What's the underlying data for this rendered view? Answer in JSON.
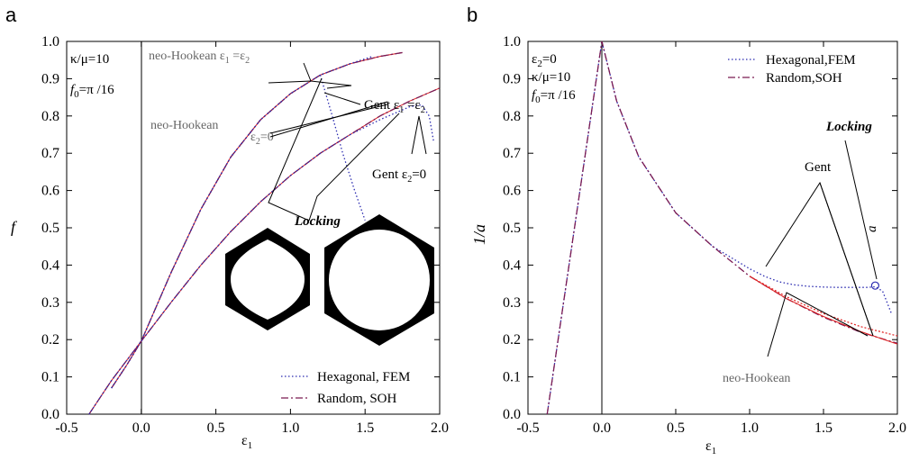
{
  "panels": {
    "a": {
      "letter": "a",
      "ylabel": "f",
      "xlabel": "ε",
      "xlabel_sub": "1",
      "x_ticks": [
        "-0.5",
        "0.0",
        "0.5",
        "1.0",
        "1.5",
        "2.0"
      ],
      "y_ticks": [
        "0.0",
        "0.1",
        "0.2",
        "0.3",
        "0.4",
        "0.5",
        "0.6",
        "0.7",
        "0.8",
        "0.9",
        "1.0"
      ],
      "params": [
        "κ/μ=10",
        "f",
        "0",
        "=π /16"
      ],
      "annotations": {
        "nh_equal": "neo-Hookean ε",
        "nh_equal_b": "1",
        "nh_equal_c": " =ε",
        "nh_equal_d": "2",
        "gent_equal": "Gent ε",
        "gent_equal_b": "1",
        "gent_equal_c": " =ε",
        "gent_equal_d": "2",
        "nh": "neo-Hookean",
        "eps2_zero": "ε",
        "eps2_zero_b": "2",
        "eps2_zero_c": "=0",
        "gent_eps2": "Gent ε",
        "gent_eps2_b": "2",
        "gent_eps2_c": "=0",
        "locking": "Locking"
      },
      "legend": [
        "Hexagonal, FEM",
        "Random, SOH"
      ]
    },
    "b": {
      "letter": "b",
      "ylabel": "1/a",
      "xlabel": "ε",
      "xlabel_sub": "1",
      "x_ticks": [
        "-0.5",
        "0.0",
        "0.5",
        "1.0",
        "1.5",
        "2.0"
      ],
      "y_ticks": [
        "0.0",
        "0.1",
        "0.2",
        "0.3",
        "0.4",
        "0.5",
        "0.6",
        "0.7",
        "0.8",
        "0.9",
        "1.0"
      ],
      "params": [
        "ε",
        "2",
        "=0",
        "κ/μ=10",
        "f",
        "0",
        "=π /16"
      ],
      "annotations": {
        "locking": "Locking",
        "gent": "Gent",
        "a": "a",
        "nh": "neo-Hookean"
      },
      "legend": [
        "Hexagonal,FEM",
        "Random,SOH"
      ]
    }
  },
  "colors": {
    "fem": "#2b2bb0",
    "soh": "#7a1a52",
    "red": "#e02020",
    "axis": "#000000"
  },
  "chart_data": [
    {
      "type": "line",
      "title": "",
      "xlabel": "ε1",
      "ylabel": "f",
      "xlim": [
        -0.5,
        2.0
      ],
      "ylim": [
        0.0,
        1.0
      ],
      "series": [
        {
          "name": "Hexagonal, FEM",
          "curve": "equibiaxial neo-Hookean",
          "x": [
            -0.2,
            -0.1,
            0,
            0.2,
            0.4,
            0.6,
            0.8,
            1.0,
            1.2,
            1.4,
            1.6,
            1.75
          ],
          "y": [
            0.07,
            0.13,
            0.196,
            0.38,
            0.55,
            0.69,
            0.79,
            0.86,
            0.91,
            0.94,
            0.96,
            0.97
          ]
        },
        {
          "name": "Random, SOH",
          "curve": "equibiaxial neo-Hookean",
          "x": [
            -0.2,
            -0.1,
            0,
            0.2,
            0.4,
            0.6,
            0.8,
            1.0,
            1.2,
            1.4,
            1.6,
            1.75
          ],
          "y": [
            0.07,
            0.13,
            0.196,
            0.38,
            0.55,
            0.69,
            0.79,
            0.86,
            0.91,
            0.94,
            0.96,
            0.97
          ]
        },
        {
          "name": "Hexagonal, FEM",
          "curve": "equibiaxial Gent",
          "x": [
            -0.2,
            -0.1,
            0,
            0.2,
            0.4,
            0.6,
            0.8,
            1.0,
            1.2,
            1.4,
            1.55
          ],
          "y": [
            0.07,
            0.13,
            0.196,
            0.38,
            0.55,
            0.69,
            0.79,
            0.86,
            0.91,
            0.94,
            0.96
          ]
        },
        {
          "name": "Hexagonal, FEM",
          "curve": "equibiaxial locking",
          "x": [
            1.2,
            1.28,
            1.35,
            1.43,
            1.5
          ],
          "y": [
            0.91,
            0.8,
            0.7,
            0.6,
            0.52
          ]
        },
        {
          "name": "Random, SOH",
          "curve": "uniaxial neo-Hookean",
          "x": [
            -0.35,
            -0.2,
            0,
            0.2,
            0.4,
            0.6,
            0.8,
            1.0,
            1.2,
            1.4,
            1.6,
            1.8,
            2.0
          ],
          "y": [
            0.0,
            0.09,
            0.196,
            0.3,
            0.4,
            0.49,
            0.57,
            0.64,
            0.7,
            0.75,
            0.8,
            0.84,
            0.875
          ]
        },
        {
          "name": "Hexagonal, FEM",
          "curve": "uniaxial Gent",
          "x": [
            -0.35,
            -0.2,
            0,
            0.2,
            0.4,
            0.6,
            0.8,
            1.0,
            1.2,
            1.4,
            1.6,
            1.8,
            1.88,
            1.93,
            1.96
          ],
          "y": [
            0.0,
            0.09,
            0.196,
            0.3,
            0.4,
            0.49,
            0.57,
            0.64,
            0.7,
            0.75,
            0.79,
            0.825,
            0.83,
            0.8,
            0.73
          ]
        }
      ]
    },
    {
      "type": "line",
      "title": "",
      "xlabel": "ε1",
      "ylabel": "1/a",
      "xlim": [
        -0.5,
        2.0
      ],
      "ylim": [
        0.0,
        1.0
      ],
      "series": [
        {
          "name": "Hexagonal,FEM",
          "x": [
            -0.37,
            -0.2,
            0,
            0.1,
            0.25,
            0.5,
            0.75,
            1.0,
            1.1,
            1.2,
            1.3,
            1.4,
            1.5,
            1.6,
            1.7,
            1.8,
            1.85,
            1.9,
            1.93,
            1.96
          ],
          "y": [
            0.0,
            0.46,
            1.0,
            0.84,
            0.69,
            0.54,
            0.45,
            0.39,
            0.37,
            0.355,
            0.347,
            0.343,
            0.341,
            0.34,
            0.34,
            0.34,
            0.342,
            0.33,
            0.3,
            0.27
          ]
        },
        {
          "name": "Random,SOH",
          "x": [
            -0.37,
            -0.2,
            0,
            0.1,
            0.25,
            0.5,
            0.75,
            1.0,
            1.25,
            1.5,
            1.75,
            2.0
          ],
          "y": [
            0.0,
            0.46,
            1.0,
            0.84,
            0.69,
            0.54,
            0.45,
            0.37,
            0.31,
            0.26,
            0.22,
            0.19
          ]
        },
        {
          "name": "Gent (red dotted)",
          "x": [
            1.0,
            1.25,
            1.5,
            1.75,
            2.0
          ],
          "y": [
            0.37,
            0.315,
            0.27,
            0.235,
            0.21
          ]
        },
        {
          "name": "neo-Hookean (red)",
          "x": [
            1.0,
            1.25,
            1.5,
            1.75,
            2.0
          ],
          "y": [
            0.37,
            0.31,
            0.262,
            0.222,
            0.188
          ]
        }
      ],
      "marker": {
        "x": 1.85,
        "y": 0.345
      }
    }
  ]
}
